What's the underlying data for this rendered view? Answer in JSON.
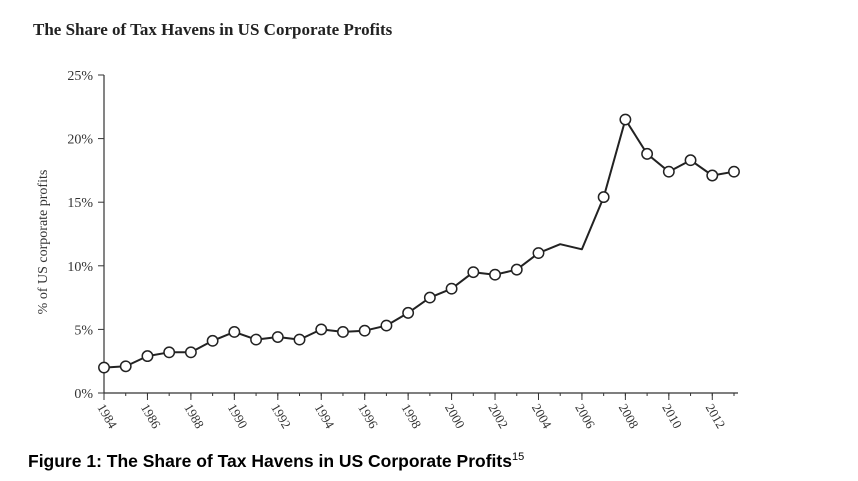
{
  "chart_data": {
    "type": "line",
    "title": "The Share of Tax Havens in US Corporate Profits",
    "xlabel": "",
    "ylabel": "% of US corporate profits",
    "ylim": [
      0,
      25
    ],
    "xlim": [
      1984,
      2013
    ],
    "y_ticks": [
      0,
      5,
      10,
      15,
      20,
      25
    ],
    "y_tick_labels": [
      "0%",
      "5%",
      "10%",
      "15%",
      "20%",
      "25%"
    ],
    "x_ticks": [
      1984,
      1986,
      1988,
      1990,
      1992,
      1994,
      1996,
      1998,
      2000,
      2002,
      2004,
      2006,
      2008,
      2010,
      2012
    ],
    "x_tick_labels": [
      "1984",
      "1986",
      "1988",
      "1990",
      "1992",
      "1994",
      "1996",
      "1998",
      "2000",
      "2002",
      "2004",
      "2006",
      "2008",
      "2010",
      "2012"
    ],
    "grid": false,
    "series": [
      {
        "x": [
          1984,
          1985,
          1986,
          1987,
          1988,
          1989,
          1990,
          1991,
          1992,
          1993,
          1994,
          1995,
          1996,
          1997,
          1998,
          1999,
          2000,
          2001,
          2002,
          2003,
          2004,
          2005,
          2006,
          2007,
          2008,
          2009,
          2010,
          2011,
          2012,
          2013
        ],
        "values": [
          2.0,
          2.1,
          2.9,
          3.2,
          3.2,
          4.1,
          4.8,
          4.2,
          4.4,
          4.2,
          5.0,
          4.8,
          4.9,
          5.3,
          6.3,
          7.5,
          8.2,
          9.5,
          9.3,
          9.7,
          11.0,
          11.7,
          11.3,
          15.4,
          21.5,
          18.8,
          17.4,
          18.3,
          17.1,
          17.4
        ],
        "markers": [
          true,
          true,
          true,
          true,
          true,
          true,
          true,
          true,
          true,
          true,
          true,
          true,
          true,
          true,
          true,
          true,
          true,
          true,
          true,
          true,
          true,
          false,
          false,
          true,
          true,
          true,
          true,
          true,
          true,
          true
        ]
      }
    ],
    "colors": {
      "line": "#222222",
      "marker_fill": "#ffffff",
      "marker_edge": "#222222",
      "axis": "#333333"
    }
  },
  "caption": {
    "text": "Figure 1: The Share of Tax Havens in US Corporate Profits",
    "footnote": "15"
  }
}
